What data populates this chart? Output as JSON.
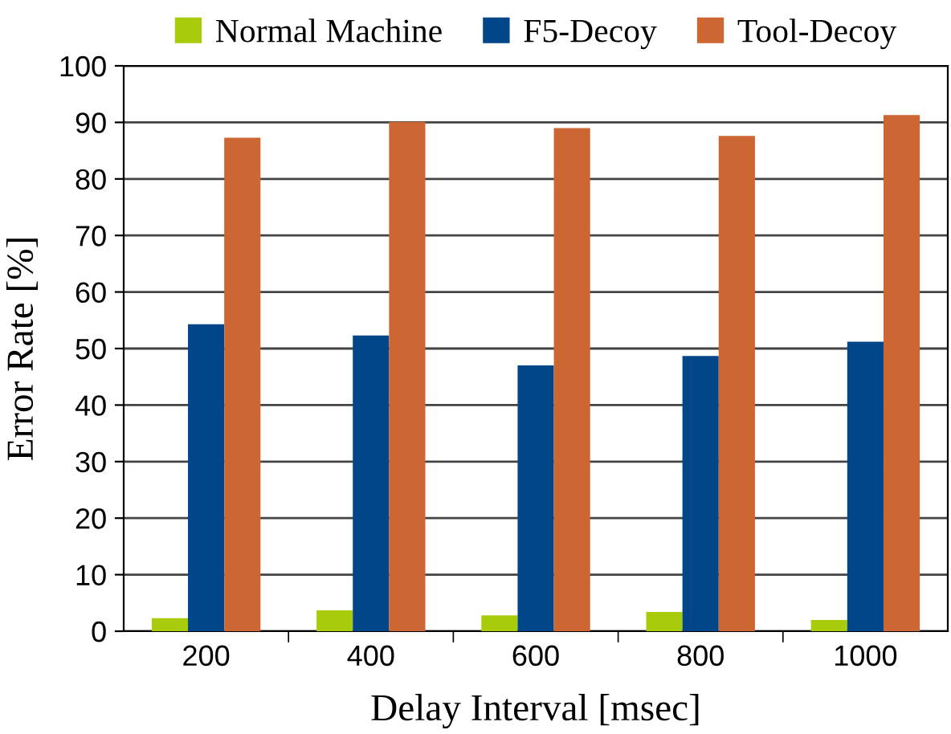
{
  "chart_data": {
    "type": "bar",
    "xlabel": "Delay Interval [msec]",
    "ylabel": "Error Rate [%]",
    "categories": [
      "200",
      "400",
      "600",
      "800",
      "1000"
    ],
    "series": [
      {
        "name": "Normal Machine",
        "color": "#a8cc0c",
        "values": [
          2.3,
          3.7,
          2.8,
          3.4,
          2.0
        ]
      },
      {
        "name": "F5-Decoy",
        "color": "#02468a",
        "values": [
          54.3,
          52.3,
          47.0,
          48.7,
          51.2
        ]
      },
      {
        "name": "Tool-Decoy",
        "color": "#cc6633",
        "values": [
          87.3,
          90.1,
          89.0,
          87.6,
          91.3
        ]
      }
    ],
    "ylim": [
      0,
      100
    ],
    "yticks": [
      0,
      10,
      20,
      30,
      40,
      50,
      60,
      70,
      80,
      90,
      100
    ],
    "grid": "y",
    "legend": "top"
  }
}
